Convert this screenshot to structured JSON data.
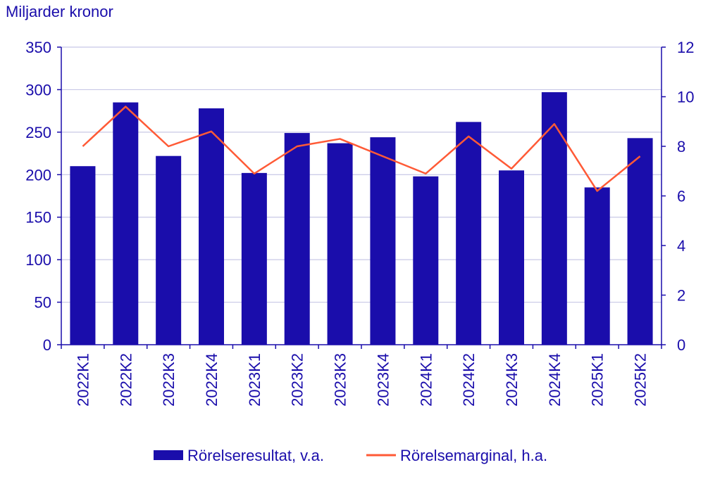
{
  "chart_data": {
    "type": "bar",
    "title": "",
    "ylabel": "Miljarder kronor",
    "xlabel": "",
    "categories": [
      "2022K1",
      "2022K2",
      "2022K3",
      "2022K4",
      "2023K1",
      "2023K2",
      "2023K3",
      "2023K4",
      "2024K1",
      "2024K2",
      "2024K3",
      "2024K4",
      "2025K1",
      "2025K2"
    ],
    "series": [
      {
        "name": "Rörelseresultat, v.a.",
        "type": "bar",
        "axis": "left",
        "values": [
          210,
          285,
          222,
          278,
          202,
          249,
          237,
          244,
          198,
          262,
          205,
          297,
          185,
          243
        ]
      },
      {
        "name": "Rörelsemarginal, h.a.",
        "type": "line",
        "axis": "right",
        "values": [
          8.0,
          9.6,
          8.0,
          8.6,
          6.9,
          8.0,
          8.3,
          7.6,
          6.9,
          8.4,
          7.1,
          8.9,
          6.2,
          7.6
        ]
      }
    ],
    "ylim": [
      0,
      350
    ],
    "yticks": [
      0,
      50,
      100,
      150,
      200,
      250,
      300,
      350
    ],
    "y2lim": [
      0,
      12
    ],
    "y2ticks": [
      0,
      2,
      4,
      6,
      8,
      10,
      12
    ],
    "grid": true,
    "legend_position": "bottom"
  },
  "colors": {
    "bar": "#1a0dab",
    "line": "#ff5a36",
    "text": "#1a0dab",
    "grid": "#c8c8e6"
  }
}
